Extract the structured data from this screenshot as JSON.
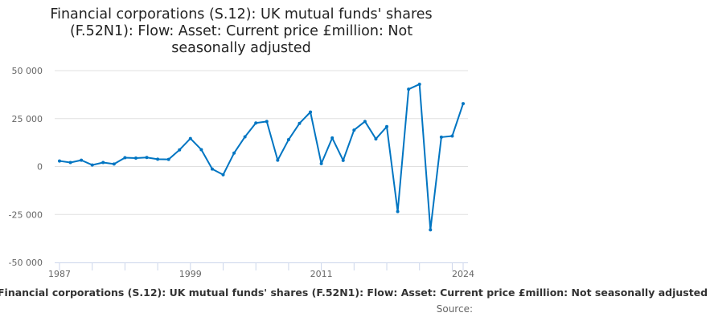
{
  "chart_data": {
    "type": "line",
    "title": "Financial corporations (S.12): UK mutual funds' shares (F.52N1): Flow: Asset: Current price £million: Not seasonally adjusted",
    "xlabel": "Financial corporations (S.12): UK mutual funds' shares (F.52N1): Flow: Asset: Current price £million: Not seasonally adjusted",
    "ylabel": "",
    "x": [
      1987,
      1988,
      1989,
      1990,
      1991,
      1992,
      1993,
      1994,
      1995,
      1996,
      1997,
      1998,
      1999,
      2000,
      2001,
      2002,
      2003,
      2004,
      2005,
      2006,
      2007,
      2008,
      2009,
      2010,
      2011,
      2012,
      2013,
      2014,
      2015,
      2016,
      2017,
      2018,
      2019,
      2020,
      2021,
      2022,
      2023,
      2024
    ],
    "series": [
      {
        "name": "UK mutual funds' shares",
        "values": [
          2900,
          2100,
          3300,
          800,
          2100,
          1300,
          4600,
          4400,
          4700,
          3800,
          3700,
          8700,
          14600,
          8800,
          -1300,
          -4300,
          7000,
          15500,
          22700,
          23500,
          3300,
          14000,
          22500,
          28400,
          1500,
          14900,
          3200,
          19000,
          23500,
          14400,
          20800,
          -23500,
          40300,
          42900,
          -33000,
          15300,
          15900,
          32800
        ]
      }
    ],
    "ylim": [
      -50000,
      50000
    ],
    "yticks": [
      50000,
      25000,
      0,
      -25000,
      -50000
    ],
    "ytick_labels": [
      "50 000",
      "25 000",
      "0",
      "-25 000",
      "-50 000"
    ],
    "xtick_labels": [
      "1987",
      "1999",
      "2011",
      "2024"
    ],
    "xtick_values": [
      1987,
      1999,
      2011,
      2024
    ],
    "grid": true,
    "line_color": "#0075c2",
    "source_label": "Source:"
  }
}
